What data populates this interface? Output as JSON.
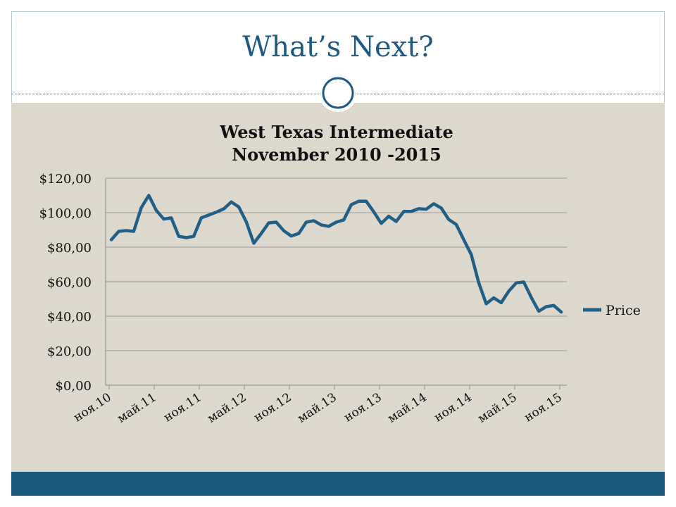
{
  "slide": {
    "title": "What’s Next?"
  },
  "colors": {
    "accent": "#1b587c",
    "title": "#1f5a84",
    "content_background": "#ddd8ce",
    "series": "#215f86"
  },
  "chart_data": {
    "type": "line",
    "title_lines": [
      "West Texas Intermediate",
      "November 2010 -2015"
    ],
    "xlabel": "",
    "ylabel": "",
    "ylim": [
      0,
      120
    ],
    "ytick_step": 20,
    "ytick_labels": [
      "$0,00",
      "$20,00",
      "$40,00",
      "$60,00",
      "$80,00",
      "$100,00",
      "$120,00"
    ],
    "grid": true,
    "legend_position": "right",
    "xtick_labels": [
      "ноя.10",
      "май.11",
      "ноя.11",
      "май.12",
      "ноя.12",
      "май.13",
      "ноя.13",
      "май.14",
      "ноя.14",
      "май.15",
      "ноя.15"
    ],
    "xtick_step_months": 6,
    "series": [
      {
        "name": "Price",
        "values": [
          84.3,
          89.2,
          89.6,
          89.2,
          102.9,
          110.0,
          101.3,
          96.3,
          97.0,
          86.3,
          85.5,
          86.3,
          97.0,
          98.6,
          100.3,
          102.2,
          106.2,
          103.3,
          94.7,
          82.3,
          87.9,
          94.1,
          94.5,
          89.5,
          86.5,
          87.9,
          94.5,
          95.3,
          92.9,
          92.1,
          94.5,
          95.8,
          104.6,
          106.6,
          106.6,
          100.5,
          93.8,
          97.9,
          94.9,
          100.7,
          100.7,
          102.3,
          102.0,
          105.2,
          102.7,
          96.0,
          93.2,
          84.4,
          75.8,
          59.3,
          47.2,
          50.6,
          47.8,
          54.5,
          59.3,
          59.8,
          50.9,
          42.9,
          45.5,
          46.2,
          42.4
        ]
      }
    ]
  }
}
